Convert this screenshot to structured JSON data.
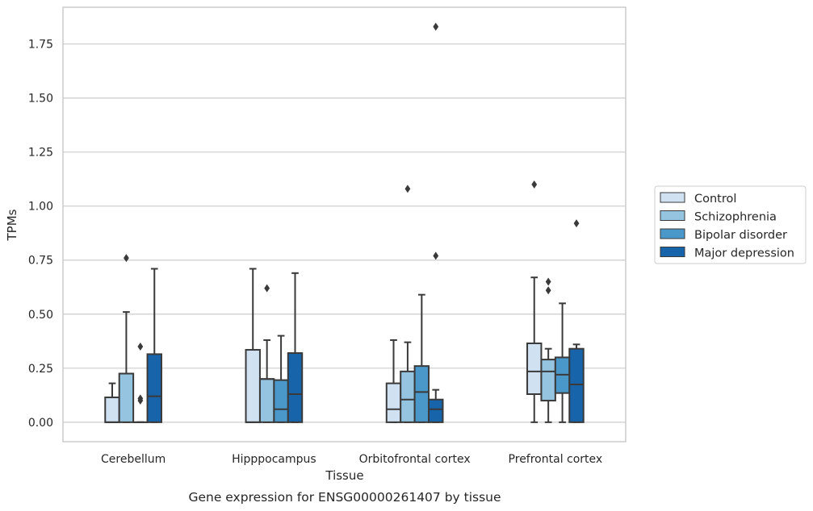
{
  "chart_data": {
    "type": "box",
    "title": "",
    "caption": "Gene expression for ENSG00000261407 by tissue",
    "xlabel": "Tissue",
    "ylabel": "TPMs",
    "ylim": [
      -0.09,
      1.92
    ],
    "yticks": [
      "0.00",
      "0.25",
      "0.50",
      "0.75",
      "1.00",
      "1.25",
      "1.50",
      "1.75"
    ],
    "grid": true,
    "legend_position": "right",
    "categories": [
      "Cerebellum",
      "Hipppocampus",
      "Orbitofrontal cortex",
      "Prefrontal cortex"
    ],
    "series": [
      {
        "name": "Control",
        "color": "#d0e1f2",
        "boxes": [
          {
            "whisker_low": 0.0,
            "q1": 0.0,
            "median": 0.0,
            "q3": 0.115,
            "whisker_high": 0.18,
            "outliers": []
          },
          {
            "whisker_low": 0.0,
            "q1": 0.0,
            "median": 0.0,
            "q3": 0.335,
            "whisker_high": 0.71,
            "outliers": []
          },
          {
            "whisker_low": 0.0,
            "q1": 0.0,
            "median": 0.06,
            "q3": 0.18,
            "whisker_high": 0.38,
            "outliers": []
          },
          {
            "whisker_low": 0.0,
            "q1": 0.13,
            "median": 0.235,
            "q3": 0.365,
            "whisker_high": 0.67,
            "outliers": [
              1.1
            ]
          }
        ]
      },
      {
        "name": "Schizophrenia",
        "color": "#94c4df",
        "boxes": [
          {
            "whisker_low": 0.0,
            "q1": 0.0,
            "median": 0.225,
            "q3": 0.225,
            "whisker_high": 0.51,
            "outliers": [
              0.76
            ]
          },
          {
            "whisker_low": 0.0,
            "q1": 0.0,
            "median": 0.2,
            "q3": 0.2,
            "whisker_high": 0.38,
            "outliers": [
              0.62
            ]
          },
          {
            "whisker_low": 0.0,
            "q1": 0.0,
            "median": 0.105,
            "q3": 0.235,
            "whisker_high": 0.37,
            "outliers": [
              1.08
            ]
          },
          {
            "whisker_low": 0.0,
            "q1": 0.1,
            "median": 0.235,
            "q3": 0.29,
            "whisker_high": 0.34,
            "outliers": [
              0.61,
              0.65
            ]
          }
        ]
      },
      {
        "name": "Bipolar disorder",
        "color": "#4a98c9",
        "boxes": [
          {
            "whisker_low": 0.0,
            "q1": 0.0,
            "median": 0.0,
            "q3": 0.0,
            "whisker_high": 0.0,
            "outliers": [
              0.1,
              0.11,
              0.35
            ]
          },
          {
            "whisker_low": 0.0,
            "q1": 0.0,
            "median": 0.06,
            "q3": 0.195,
            "whisker_high": 0.4,
            "outliers": []
          },
          {
            "whisker_low": 0.0,
            "q1": 0.0,
            "median": 0.14,
            "q3": 0.26,
            "whisker_high": 0.59,
            "outliers": []
          },
          {
            "whisker_low": 0.0,
            "q1": 0.135,
            "median": 0.22,
            "q3": 0.3,
            "whisker_high": 0.55,
            "outliers": []
          }
        ]
      },
      {
        "name": "Major depression",
        "color": "#1764ab",
        "boxes": [
          {
            "whisker_low": 0.0,
            "q1": 0.0,
            "median": 0.12,
            "q3": 0.315,
            "whisker_high": 0.71,
            "outliers": []
          },
          {
            "whisker_low": 0.0,
            "q1": 0.0,
            "median": 0.13,
            "q3": 0.32,
            "whisker_high": 0.69,
            "outliers": []
          },
          {
            "whisker_low": 0.0,
            "q1": 0.0,
            "median": 0.06,
            "q3": 0.105,
            "whisker_high": 0.15,
            "outliers": [
              0.77,
              1.83
            ]
          },
          {
            "whisker_low": 0.0,
            "q1": 0.0,
            "median": 0.175,
            "q3": 0.34,
            "whisker_high": 0.36,
            "outliers": [
              0.92
            ]
          }
        ]
      }
    ]
  }
}
